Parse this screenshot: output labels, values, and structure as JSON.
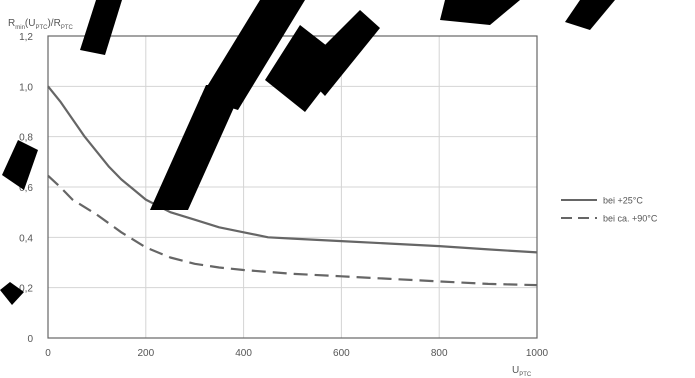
{
  "chart_data": {
    "type": "line",
    "title": "",
    "ylabel": {
      "main": "R",
      "sub1": "min",
      "mid": "(U",
      "sub2": "PTC",
      "mid2": ")/R",
      "sub3": "PTC"
    },
    "xlabel": {
      "main": "U",
      "sub": "PTC"
    },
    "xlim": [
      0,
      1000
    ],
    "ylim": [
      0,
      1.2
    ],
    "xticks": [
      0,
      200,
      400,
      600,
      800,
      1000
    ],
    "yticks": [
      0,
      0.2,
      0.4,
      0.6,
      0.8,
      1.0,
      1.2
    ],
    "ytick_labels": [
      "0",
      "0,2",
      "0,4",
      "0,6",
      "0,8",
      "1,0",
      "1,2"
    ],
    "grid": true,
    "legend_position": "right",
    "series": [
      {
        "name": "bei +25°C",
        "style": "solid",
        "color": "#666666",
        "x": [
          0,
          25,
          50,
          75,
          100,
          125,
          150,
          175,
          200,
          250,
          300,
          350,
          400,
          450,
          500,
          600,
          700,
          800,
          900,
          1000
        ],
        "y": [
          1.0,
          0.94,
          0.87,
          0.8,
          0.74,
          0.68,
          0.63,
          0.59,
          0.55,
          0.5,
          0.47,
          0.44,
          0.42,
          0.4,
          0.395,
          0.385,
          0.375,
          0.365,
          0.352,
          0.34
        ]
      },
      {
        "name": "bei ca. +90°C",
        "style": "dashed",
        "color": "#666666",
        "x": [
          0,
          25,
          50,
          100,
          150,
          200,
          250,
          300,
          350,
          400,
          500,
          600,
          700,
          800,
          900,
          1000
        ],
        "y": [
          0.645,
          0.6,
          0.55,
          0.49,
          0.42,
          0.36,
          0.32,
          0.295,
          0.28,
          0.27,
          0.255,
          0.245,
          0.235,
          0.225,
          0.215,
          0.21
        ]
      }
    ]
  },
  "colors": {
    "grid": "#d4d4d4",
    "axis_frame": "#666666",
    "series": "#666666",
    "watermark": "#000000"
  }
}
